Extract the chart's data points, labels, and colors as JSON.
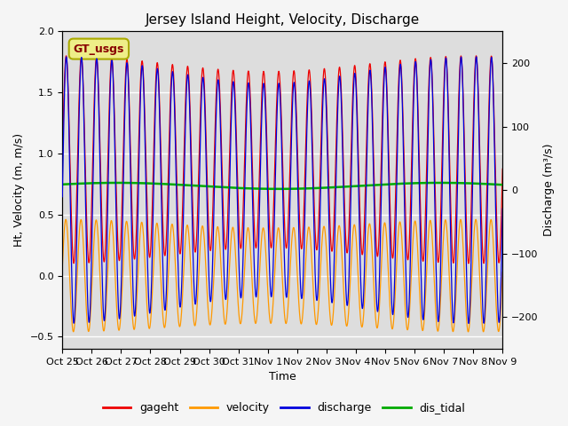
{
  "title": "Jersey Island Height, Velocity, Discharge",
  "xlabel": "Time",
  "ylabel_left": "Ht, Velocity (m, m/s)",
  "ylabel_right": "Discharge (m³/s)",
  "ylim_left": [
    -0.6,
    2.0
  ],
  "ylim_right": [
    -250,
    250
  ],
  "xtick_labels": [
    "Oct 25",
    "Oct 26",
    "Oct 27",
    "Oct 28",
    "Oct 29",
    "Oct 30",
    "Oct 31",
    "Nov 1",
    "Nov 2",
    "Nov 3",
    "Nov 4",
    "Nov 5",
    "Nov 6",
    "Nov 7",
    "Nov 8",
    "Nov 9"
  ],
  "annotation_text": "GT_usgs",
  "annotation_bg": "#eeee88",
  "annotation_border": "#aaaa00",
  "annotation_text_color": "#880000",
  "colors": {
    "gageht": "#ee0000",
    "velocity": "#ff9900",
    "discharge": "#0000dd",
    "dis_tidal": "#00aa00"
  },
  "legend_labels": [
    "gageht",
    "velocity",
    "discharge",
    "dis_tidal"
  ],
  "bg_color": "#dddddd",
  "fig_bg_color": "#f5f5f5",
  "grid_color": "#ffffff",
  "title_fontsize": 11,
  "axis_fontsize": 9,
  "tick_fontsize": 8,
  "legend_fontsize": 9
}
